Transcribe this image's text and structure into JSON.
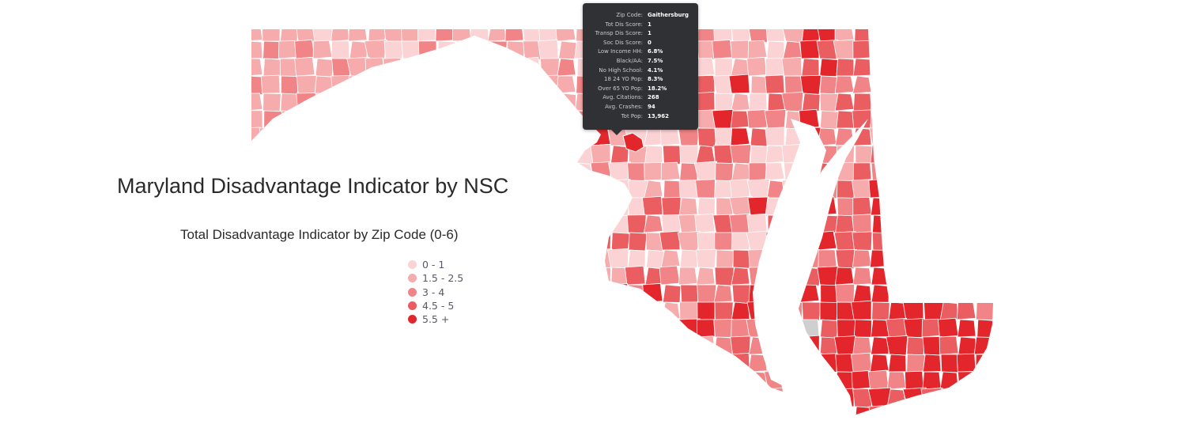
{
  "map": {
    "title": "Maryland Disadvantage Indicator by NSC",
    "subtitle": "Total Disadvantage Indicator by Zip Code (0-6)",
    "colors": {
      "no_data": "#cfcfcf",
      "border": "#ffffff"
    }
  },
  "legend": [
    {
      "label": "0 - 1",
      "color": "#fbd3d5"
    },
    {
      "label": "1.5 - 2.5",
      "color": "#f6abac"
    },
    {
      "label": "3 - 4",
      "color": "#f08486"
    },
    {
      "label": "4.5 - 5",
      "color": "#ea5d60"
    },
    {
      "label": "5.5 +",
      "color": "#e3262b"
    }
  ],
  "tooltip": {
    "rows": [
      {
        "label": "Zip Code:",
        "value": "Gaithersburg"
      },
      {
        "label": "Tot Dis Score:",
        "value": "1"
      },
      {
        "label": "Transp Dis Score:",
        "value": "1"
      },
      {
        "label": "Soc Dis Score:",
        "value": "0"
      },
      {
        "label": "Low Income HH:",
        "value": "6.8%"
      },
      {
        "label": "Black/AA:",
        "value": "7.5%"
      },
      {
        "label": "No High School:",
        "value": "4.1%"
      },
      {
        "label": "18 24 YO Pop:",
        "value": "8.3%"
      },
      {
        "label": "Over 65 YO Pop:",
        "value": "18.2%"
      },
      {
        "label": "Avg. Citations:",
        "value": "268"
      },
      {
        "label": "Avg. Crashes:",
        "value": "94"
      },
      {
        "label": "Tot Pop:",
        "value": "13,962"
      }
    ]
  }
}
